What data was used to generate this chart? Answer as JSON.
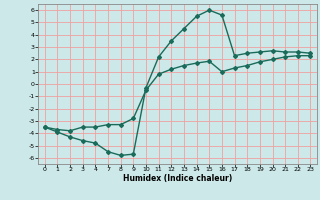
{
  "xlabel": "Humidex (Indice chaleur)",
  "background_color": "#cce8e8",
  "grid_color": "#f0a0a0",
  "line_color": "#1a6b5a",
  "ylim": [
    -6.5,
    6.5
  ],
  "yticks": [
    -6,
    -5,
    -4,
    -3,
    -2,
    -1,
    0,
    1,
    2,
    3,
    4,
    5,
    6
  ],
  "xlabels": [
    "0",
    "1",
    "2",
    "3",
    "4",
    "7",
    "8",
    "9",
    "10",
    "11",
    "12",
    "13",
    "14",
    "15",
    "16",
    "17",
    "18",
    "19",
    "20",
    "21",
    "22",
    "23"
  ],
  "line1_y": [
    -3.5,
    -3.9,
    -4.3,
    -4.6,
    -4.8,
    -5.5,
    -5.8,
    -5.7,
    -0.3,
    2.2,
    3.5,
    4.5,
    5.5,
    6.0,
    5.6,
    2.3,
    2.5,
    2.6,
    2.7,
    2.6,
    2.6,
    2.5
  ],
  "line2_y": [
    -3.5,
    -3.7,
    -3.8,
    -3.5,
    -3.5,
    -3.3,
    -3.3,
    -2.8,
    -0.5,
    0.8,
    1.2,
    1.5,
    1.7,
    1.85,
    1.0,
    1.3,
    1.5,
    1.8,
    2.0,
    2.2,
    2.3,
    2.3
  ],
  "marker": "D",
  "markersize": 2.0,
  "linewidth": 1.0
}
